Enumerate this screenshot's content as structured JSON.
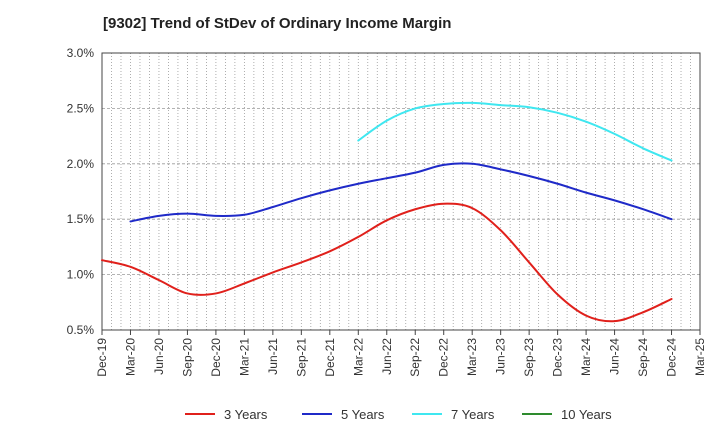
{
  "title": "[9302]  Trend of StDev of Ordinary Income Margin",
  "chart_data": {
    "type": "line",
    "title": "[9302]  Trend of StDev of Ordinary Income Margin",
    "xlabel": "",
    "ylabel": "",
    "x_ticks": [
      "Dec-19",
      "Mar-20",
      "Jun-20",
      "Sep-20",
      "Dec-20",
      "Mar-21",
      "Jun-21",
      "Sep-21",
      "Dec-21",
      "Mar-22",
      "Jun-22",
      "Sep-22",
      "Dec-22",
      "Mar-23",
      "Jun-23",
      "Sep-23",
      "Dec-23",
      "Mar-24",
      "Jun-24",
      "Sep-24",
      "Dec-24",
      "Mar-25"
    ],
    "y_ticks": [
      "0.5%",
      "1.0%",
      "1.5%",
      "2.0%",
      "2.5%",
      "3.0%"
    ],
    "ylim": [
      0.5,
      3.0
    ],
    "y_unit": "%",
    "grid": "vertical dotted per month, horizontal dashed per 0.5%",
    "legend_position": "bottom",
    "series": [
      {
        "name": "3 Years",
        "color": "#e0201b",
        "points": [
          [
            "Dec-19",
            1.13
          ],
          [
            "Mar-20",
            1.07
          ],
          [
            "Jun-20",
            0.95
          ],
          [
            "Sep-20",
            0.83
          ],
          [
            "Dec-20",
            0.83
          ],
          [
            "Mar-21",
            0.92
          ],
          [
            "Jun-21",
            1.02
          ],
          [
            "Sep-21",
            1.11
          ],
          [
            "Dec-21",
            1.21
          ],
          [
            "Mar-22",
            1.34
          ],
          [
            "Jun-22",
            1.49
          ],
          [
            "Sep-22",
            1.59
          ],
          [
            "Dec-22",
            1.64
          ],
          [
            "Mar-23",
            1.6
          ],
          [
            "Jun-23",
            1.4
          ],
          [
            "Sep-23",
            1.11
          ],
          [
            "Dec-23",
            0.82
          ],
          [
            "Mar-24",
            0.63
          ],
          [
            "Jun-24",
            0.58
          ],
          [
            "Sep-24",
            0.66
          ],
          [
            "Dec-24",
            0.78
          ]
        ]
      },
      {
        "name": "5 Years",
        "color": "#1f2ac8",
        "points": [
          [
            "Mar-20",
            1.48
          ],
          [
            "Jun-20",
            1.53
          ],
          [
            "Sep-20",
            1.55
          ],
          [
            "Dec-20",
            1.53
          ],
          [
            "Mar-21",
            1.54
          ],
          [
            "Jun-21",
            1.61
          ],
          [
            "Sep-21",
            1.69
          ],
          [
            "Dec-21",
            1.76
          ],
          [
            "Mar-22",
            1.82
          ],
          [
            "Jun-22",
            1.87
          ],
          [
            "Sep-22",
            1.92
          ],
          [
            "Dec-22",
            1.99
          ],
          [
            "Mar-23",
            2.0
          ],
          [
            "Jun-23",
            1.95
          ],
          [
            "Sep-23",
            1.89
          ],
          [
            "Dec-23",
            1.82
          ],
          [
            "Mar-24",
            1.74
          ],
          [
            "Jun-24",
            1.67
          ],
          [
            "Sep-24",
            1.59
          ],
          [
            "Dec-24",
            1.5
          ]
        ]
      },
      {
        "name": "7 Years",
        "color": "#3fe7f0",
        "points": [
          [
            "Mar-22",
            2.21
          ],
          [
            "Jun-22",
            2.39
          ],
          [
            "Sep-22",
            2.5
          ],
          [
            "Dec-22",
            2.54
          ],
          [
            "Mar-23",
            2.55
          ],
          [
            "Jun-23",
            2.53
          ],
          [
            "Sep-23",
            2.51
          ],
          [
            "Dec-23",
            2.46
          ],
          [
            "Mar-24",
            2.38
          ],
          [
            "Jun-24",
            2.27
          ],
          [
            "Sep-24",
            2.14
          ],
          [
            "Dec-24",
            2.03
          ]
        ]
      },
      {
        "name": "10 Years",
        "color": "#2e8b2e",
        "points": []
      }
    ]
  }
}
